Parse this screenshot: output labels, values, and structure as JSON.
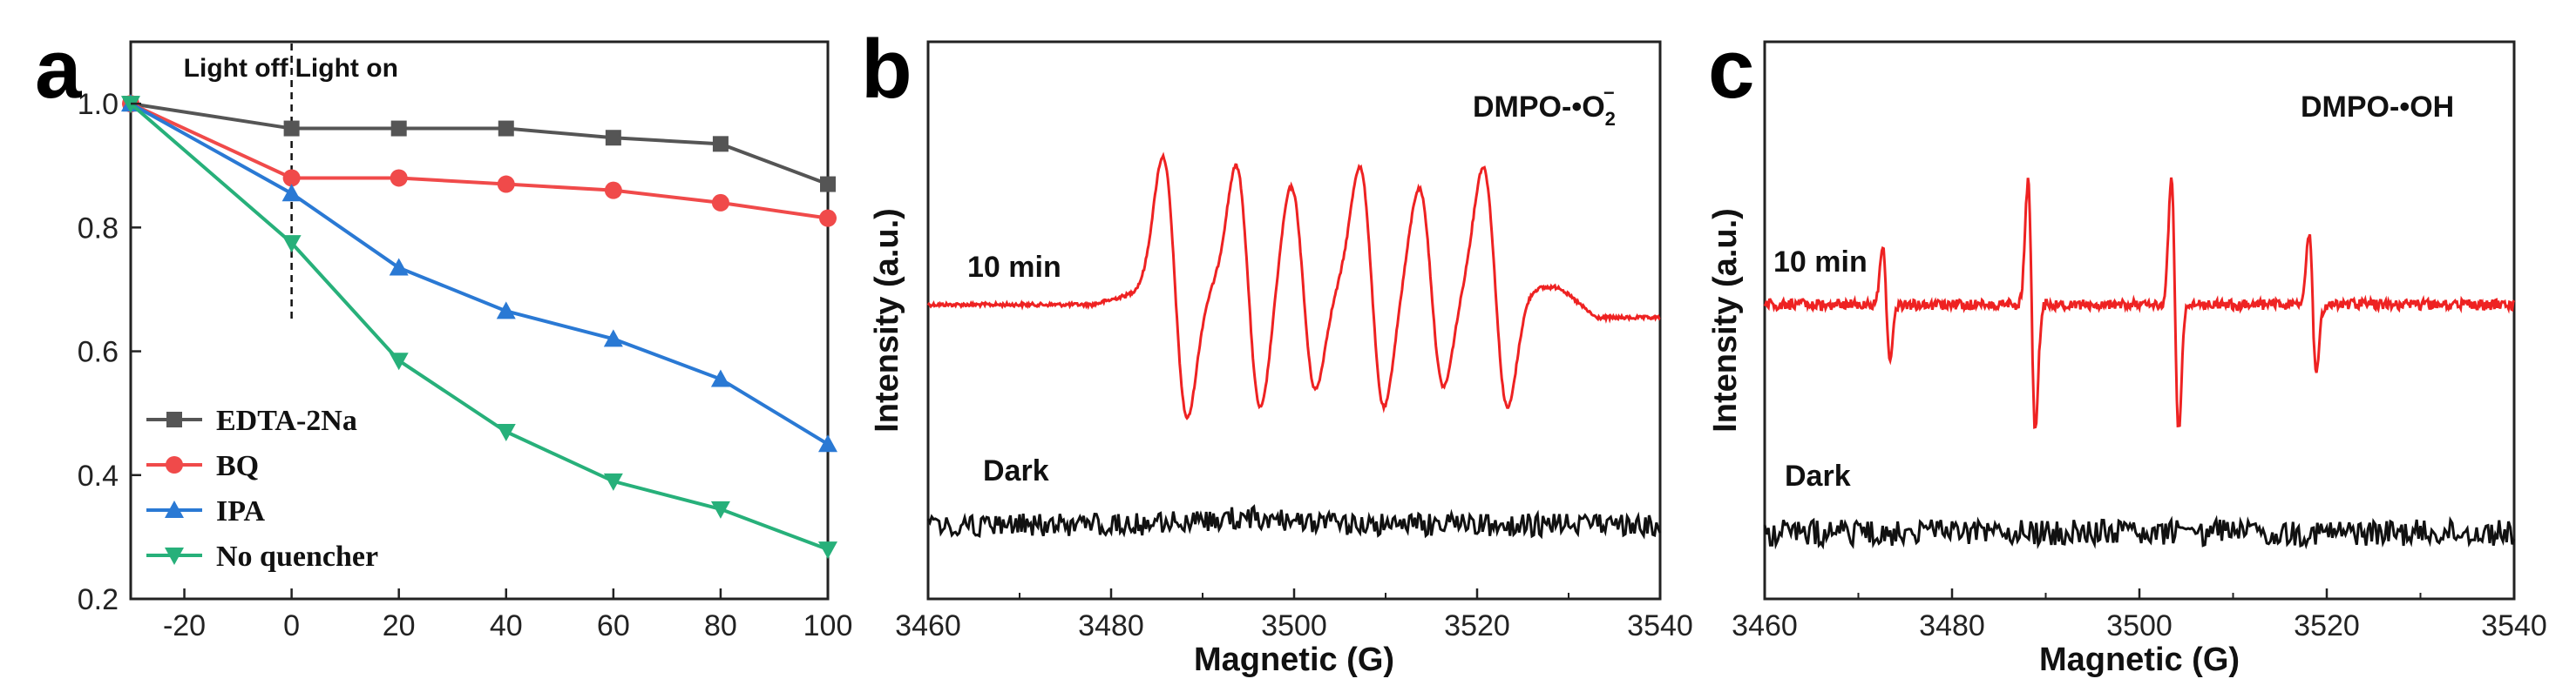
{
  "panels": {
    "a": {
      "letter": "a"
    },
    "b": {
      "letter": "b"
    },
    "c": {
      "letter": "c"
    }
  },
  "chart_data": [
    {
      "id": "a",
      "type": "line",
      "x": [
        -30,
        0,
        20,
        40,
        60,
        80,
        100
      ],
      "xlim": [
        -30,
        100
      ],
      "ylim": [
        0.2,
        1.1
      ],
      "xticks": [
        "-20",
        "0",
        "20",
        "40",
        "60",
        "80",
        "100"
      ],
      "yticks": [
        "0.2",
        "0.4",
        "0.6",
        "0.8",
        "1.0"
      ],
      "annotations": {
        "light_off": "Light off",
        "light_on": "Light on"
      },
      "divider_x": 0,
      "legend_position": "bottom-left",
      "series": [
        {
          "name": "EDTA-2Na",
          "color": "#555555",
          "marker": "square",
          "values": [
            1.0,
            0.96,
            0.96,
            0.96,
            0.945,
            0.935,
            0.87
          ]
        },
        {
          "name": "BQ",
          "color": "#f04a4a",
          "marker": "circle",
          "values": [
            1.0,
            0.88,
            0.88,
            0.87,
            0.86,
            0.84,
            0.815
          ]
        },
        {
          "name": "IPA",
          "color": "#2a79d4",
          "marker": "triangle-up",
          "values": [
            1.0,
            0.855,
            0.735,
            0.665,
            0.62,
            0.555,
            0.45
          ]
        },
        {
          "name": "No quencher",
          "color": "#27b07a",
          "marker": "triangle-down",
          "values": [
            1.0,
            0.775,
            0.585,
            0.47,
            0.39,
            0.345,
            0.28
          ]
        }
      ]
    },
    {
      "id": "b",
      "type": "line",
      "xlabel": "Magnetic (G)",
      "ylabel": "Intensity (a.u.)",
      "xlim": [
        3460,
        3540
      ],
      "xticks": [
        "3460",
        "3480",
        "3500",
        "3520",
        "3540"
      ],
      "species_label": "DMPO-•O",
      "species_sub": "2",
      "species_sup": "−",
      "series": [
        {
          "name": "10 min",
          "color": "#ee2222",
          "peaks": [
            {
              "x": 3487.0,
              "amp": 1.0
            },
            {
              "x": 3495.0,
              "amp": 0.93
            },
            {
              "x": 3501.0,
              "amp": 0.78
            },
            {
              "x": 3508.5,
              "amp": 0.92
            },
            {
              "x": 3515.0,
              "amp": 0.76
            },
            {
              "x": 3522.0,
              "amp": 0.92
            }
          ]
        },
        {
          "name": "Dark",
          "color": "#111111",
          "peaks": []
        }
      ]
    },
    {
      "id": "c",
      "type": "line",
      "xlabel": "Magnetic (G)",
      "ylabel": "Intensity (a.u.)",
      "xlim": [
        3460,
        3540
      ],
      "xticks": [
        "3460",
        "3480",
        "3500",
        "3520",
        "3540"
      ],
      "species_label": "DMPO-•OH",
      "series": [
        {
          "name": "10 min",
          "color": "#ee2222",
          "peaks": [
            {
              "x": 3473.0,
              "amp": 0.45
            },
            {
              "x": 3488.5,
              "amp": 1.0
            },
            {
              "x": 3503.8,
              "amp": 1.0
            },
            {
              "x": 3518.5,
              "amp": 0.55
            }
          ]
        },
        {
          "name": "Dark",
          "color": "#111111",
          "peaks": []
        }
      ]
    }
  ]
}
